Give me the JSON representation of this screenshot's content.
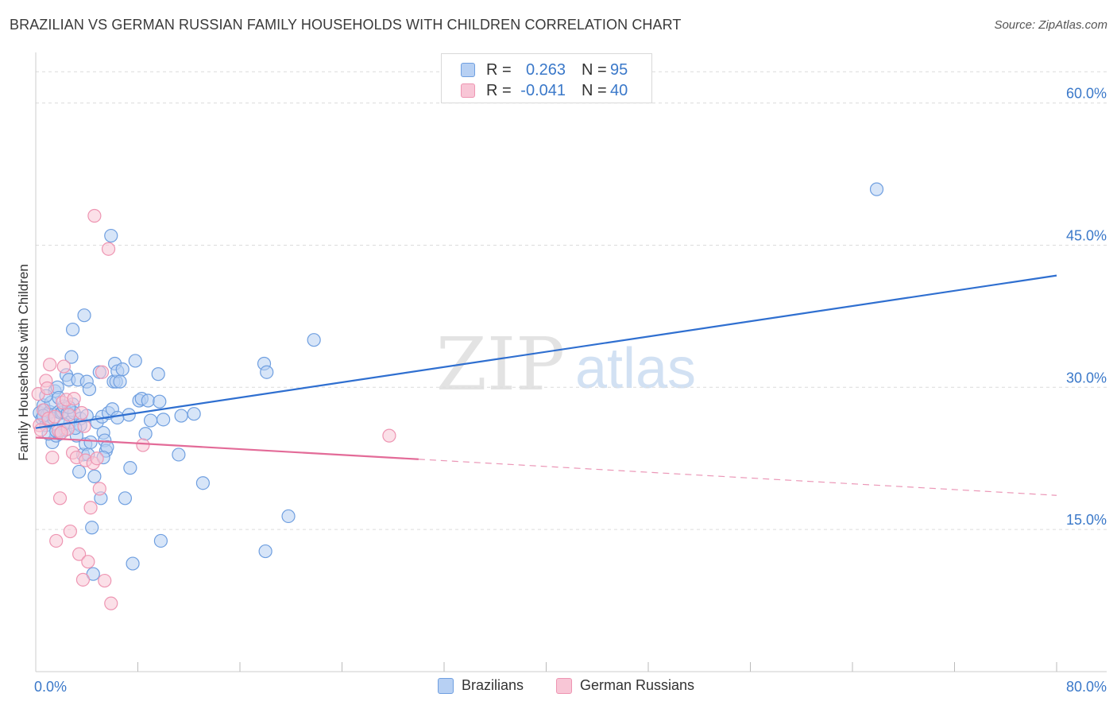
{
  "header": {
    "title": "BRAZILIAN VS GERMAN RUSSIAN FAMILY HOUSEHOLDS WITH CHILDREN CORRELATION CHART",
    "source": "Source: ZipAtlas.com"
  },
  "watermark": {
    "zip": "ZIP",
    "atlas": "atlas"
  },
  "legend_stats": [
    {
      "r_label": "R =",
      "r_value": "0.263",
      "n_label": "N =",
      "n_value": "95"
    },
    {
      "r_label": "R =",
      "r_value": "-0.041",
      "n_label": "N =",
      "n_value": "40"
    }
  ],
  "colors": {
    "blue_fill": "#b7d0f3",
    "blue_stroke": "#6f9fe0",
    "blue_line": "#2f6fd0",
    "pink_fill": "#f8c6d6",
    "pink_stroke": "#ee95b2",
    "pink_line": "#e36b98",
    "axis_text": "#3a78c9",
    "grid": "#dcdcdc"
  },
  "chart_data": {
    "type": "scatter",
    "title": "BRAZILIAN VS GERMAN RUSSIAN FAMILY HOUSEHOLDS WITH CHILDREN CORRELATION CHART",
    "xlabel": "",
    "ylabel": "Family Households with Children",
    "xlim": [
      0,
      80
    ],
    "ylim": [
      0,
      65
    ],
    "x_tick_labels": [
      "0.0%",
      "80.0%"
    ],
    "y_ticks": [
      15,
      30,
      45,
      60
    ],
    "y_tick_labels": [
      "15.0%",
      "30.0%",
      "45.0%",
      "60.0%"
    ],
    "grid": true,
    "legend_position": "bottom",
    "series": [
      {
        "name": "Brazilians",
        "r": 0.263,
        "n": 95,
        "trend": {
          "x0": 0,
          "y0": 25.7,
          "x1": 80,
          "y1": 41.8
        },
        "points": [
          [
            0.3,
            27.3
          ],
          [
            0.5,
            26.7
          ],
          [
            0.6,
            28.1
          ],
          [
            0.7,
            27.6
          ],
          [
            0.8,
            26.0
          ],
          [
            0.9,
            27.1
          ],
          [
            1.0,
            26.5
          ],
          [
            1.1,
            27.4
          ],
          [
            1.2,
            28.4
          ],
          [
            1.3,
            24.2
          ],
          [
            1.4,
            26.7
          ],
          [
            1.5,
            29.6
          ],
          [
            1.6,
            24.9
          ],
          [
            1.7,
            30.0
          ],
          [
            1.8,
            27.4
          ],
          [
            1.9,
            25.1
          ],
          [
            2.0,
            27.3
          ],
          [
            2.1,
            27.4
          ],
          [
            2.2,
            28.0
          ],
          [
            2.3,
            25.5
          ],
          [
            2.4,
            31.3
          ],
          [
            2.5,
            27.3
          ],
          [
            2.6,
            30.8
          ],
          [
            2.7,
            26.3
          ],
          [
            2.8,
            33.2
          ],
          [
            2.9,
            28.2
          ],
          [
            2.9,
            36.1
          ],
          [
            3.0,
            27.3
          ],
          [
            3.2,
            24.9
          ],
          [
            3.3,
            30.8
          ],
          [
            3.4,
            21.1
          ],
          [
            3.5,
            26.7
          ],
          [
            3.5,
            26.0
          ],
          [
            3.7,
            22.9
          ],
          [
            3.8,
            37.6
          ],
          [
            3.9,
            24.0
          ],
          [
            4.0,
            30.6
          ],
          [
            4.1,
            22.9
          ],
          [
            4.2,
            29.8
          ],
          [
            4.3,
            24.2
          ],
          [
            4.4,
            15.2
          ],
          [
            4.5,
            10.3
          ],
          [
            4.6,
            20.6
          ],
          [
            4.8,
            26.3
          ],
          [
            5.0,
            31.6
          ],
          [
            5.1,
            18.3
          ],
          [
            5.2,
            26.9
          ],
          [
            5.3,
            25.2
          ],
          [
            5.4,
            24.4
          ],
          [
            5.5,
            23.3
          ],
          [
            5.6,
            23.7
          ],
          [
            5.7,
            27.3
          ],
          [
            5.9,
            46.0
          ],
          [
            6.0,
            27.7
          ],
          [
            6.1,
            30.6
          ],
          [
            6.2,
            32.5
          ],
          [
            6.3,
            30.6
          ],
          [
            6.4,
            31.7
          ],
          [
            6.6,
            30.6
          ],
          [
            6.8,
            31.9
          ],
          [
            7.0,
            18.3
          ],
          [
            7.3,
            27.1
          ],
          [
            7.4,
            21.5
          ],
          [
            7.6,
            11.4
          ],
          [
            7.8,
            32.8
          ],
          [
            8.1,
            28.6
          ],
          [
            8.3,
            28.8
          ],
          [
            8.6,
            25.1
          ],
          [
            8.8,
            28.6
          ],
          [
            9.0,
            26.5
          ],
          [
            9.6,
            31.4
          ],
          [
            9.7,
            28.5
          ],
          [
            9.8,
            13.8
          ],
          [
            10.0,
            26.6
          ],
          [
            11.2,
            22.9
          ],
          [
            11.4,
            27.0
          ],
          [
            12.4,
            27.2
          ],
          [
            13.1,
            19.9
          ],
          [
            17.9,
            32.5
          ],
          [
            18.0,
            12.7
          ],
          [
            18.1,
            31.6
          ],
          [
            19.8,
            16.4
          ],
          [
            21.8,
            35.0
          ],
          [
            65.9,
            50.9
          ],
          [
            1.0,
            25.1
          ],
          [
            2.2,
            26.1
          ],
          [
            0.6,
            27.0
          ],
          [
            1.6,
            25.4
          ],
          [
            3.1,
            25.7
          ],
          [
            0.8,
            29.1
          ],
          [
            4.0,
            27.0
          ],
          [
            6.4,
            26.8
          ],
          [
            1.8,
            28.9
          ],
          [
            2.6,
            27.9
          ],
          [
            5.3,
            22.6
          ]
        ]
      },
      {
        "name": "German Russians",
        "r": -0.041,
        "n": 40,
        "trend": {
          "x0": 0,
          "y0": 24.7,
          "x1": 80,
          "y1": 18.6,
          "solid_until_x": 30
        },
        "points": [
          [
            0.2,
            29.3
          ],
          [
            0.3,
            26.0
          ],
          [
            0.4,
            25.5
          ],
          [
            0.6,
            27.6
          ],
          [
            0.8,
            30.7
          ],
          [
            1.0,
            26.7
          ],
          [
            1.1,
            32.4
          ],
          [
            1.3,
            22.6
          ],
          [
            1.5,
            26.9
          ],
          [
            1.6,
            13.8
          ],
          [
            1.8,
            25.4
          ],
          [
            1.9,
            18.3
          ],
          [
            2.1,
            28.4
          ],
          [
            2.2,
            32.2
          ],
          [
            2.4,
            28.7
          ],
          [
            2.5,
            25.6
          ],
          [
            2.6,
            27.1
          ],
          [
            2.7,
            14.8
          ],
          [
            2.9,
            23.1
          ],
          [
            3.0,
            28.8
          ],
          [
            3.2,
            22.6
          ],
          [
            3.4,
            12.4
          ],
          [
            3.6,
            27.3
          ],
          [
            3.8,
            25.9
          ],
          [
            3.9,
            22.3
          ],
          [
            4.1,
            11.6
          ],
          [
            4.3,
            17.3
          ],
          [
            4.5,
            22.0
          ],
          [
            4.6,
            48.1
          ],
          [
            4.8,
            22.5
          ],
          [
            5.0,
            19.3
          ],
          [
            5.2,
            31.6
          ],
          [
            5.4,
            9.6
          ],
          [
            5.7,
            44.6
          ],
          [
            5.9,
            7.2
          ],
          [
            8.4,
            23.9
          ],
          [
            27.7,
            24.9
          ],
          [
            3.7,
            9.7
          ],
          [
            0.9,
            29.9
          ],
          [
            2.0,
            25.2
          ]
        ]
      }
    ]
  }
}
